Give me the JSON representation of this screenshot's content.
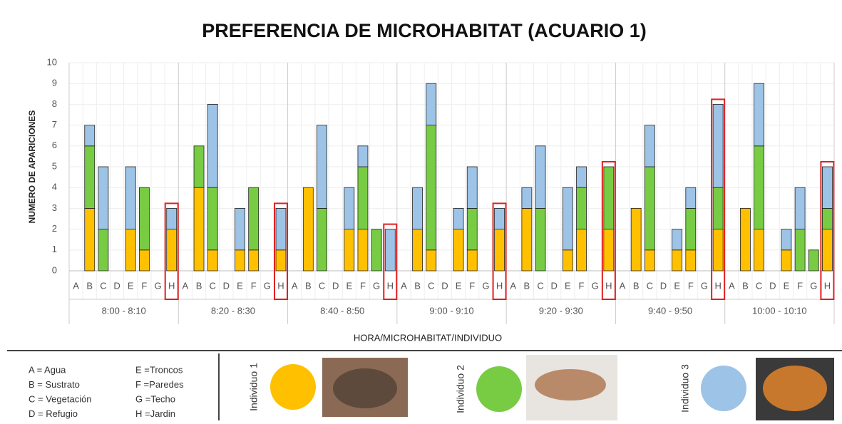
{
  "chart_data": {
    "type": "stacked_bar",
    "title": "PREFERENCIA DE MICROHABITAT (ACUARIO 1)",
    "y_label": "NUMERO DE APARICIONES",
    "x_label": "HORA/MICROHABITAT/INDIVIDUO",
    "groups": [
      "8:00 - 8:10",
      "8:20 - 8:30",
      "8:40 - 8:50",
      "9:00 - 9:10",
      "9:20 - 9:30",
      "9:40 - 9:50",
      "10:00 - 10:10"
    ],
    "categories": [
      "A",
      "B",
      "C",
      "D",
      "E",
      "F",
      "G",
      "H",
      "A",
      "B",
      "C",
      "D",
      "E",
      "F",
      "G",
      "H",
      "A",
      "B",
      "C",
      "D",
      "E",
      "F",
      "G",
      "H",
      "A",
      "B",
      "C",
      "D",
      "E",
      "F",
      "G",
      "H",
      "A",
      "B",
      "C",
      "D",
      "E",
      "F",
      "G",
      "H",
      "A",
      "B",
      "C",
      "D",
      "E",
      "F",
      "G",
      "H",
      "A",
      "B",
      "C",
      "D",
      "E",
      "F",
      "G",
      "H"
    ],
    "series": [
      {
        "name": "Individuo 1",
        "color": "#ffc000",
        "values": [
          null,
          3,
          null,
          null,
          2,
          1,
          null,
          2,
          null,
          4,
          1,
          null,
          1,
          1,
          null,
          1,
          null,
          4,
          null,
          null,
          2,
          2,
          null,
          null,
          null,
          2,
          1,
          null,
          2,
          1,
          null,
          2,
          null,
          3,
          null,
          null,
          1,
          2,
          null,
          2,
          null,
          3,
          1,
          null,
          1,
          1,
          null,
          2,
          null,
          3,
          2,
          null,
          1,
          null,
          null,
          2
        ]
      },
      {
        "name": "Individuo 2",
        "color": "#77cc44",
        "values": [
          null,
          3,
          2,
          null,
          null,
          3,
          null,
          null,
          null,
          2,
          3,
          null,
          null,
          3,
          null,
          null,
          null,
          null,
          3,
          null,
          null,
          3,
          2,
          null,
          null,
          null,
          6,
          null,
          null,
          2,
          null,
          null,
          null,
          null,
          3,
          null,
          null,
          2,
          null,
          3,
          null,
          null,
          4,
          null,
          null,
          2,
          null,
          2,
          null,
          null,
          4,
          null,
          null,
          2,
          1,
          1
        ]
      },
      {
        "name": "Individuo 3",
        "color": "#9dc3e6",
        "values": [
          null,
          1,
          3,
          null,
          3,
          null,
          null,
          1,
          null,
          null,
          4,
          null,
          2,
          null,
          null,
          2,
          null,
          null,
          4,
          null,
          2,
          1,
          null,
          2,
          null,
          2,
          2,
          null,
          1,
          2,
          null,
          1,
          null,
          1,
          3,
          null,
          3,
          1,
          null,
          null,
          null,
          null,
          2,
          null,
          1,
          1,
          null,
          4,
          null,
          null,
          3,
          null,
          1,
          2,
          null,
          2
        ]
      }
    ],
    "ylim": [
      0,
      10
    ],
    "yticks": [
      0,
      1,
      2,
      3,
      4,
      5,
      6,
      7,
      8,
      9,
      10
    ],
    "grid": true,
    "highlight_category": "H",
    "key": [
      "A = Agua",
      "B = Sustrato",
      "C = Vegetación",
      "D = Refugio",
      "E =Troncos",
      "F =Paredes",
      "G =Techo",
      "H =Jardin"
    ]
  }
}
